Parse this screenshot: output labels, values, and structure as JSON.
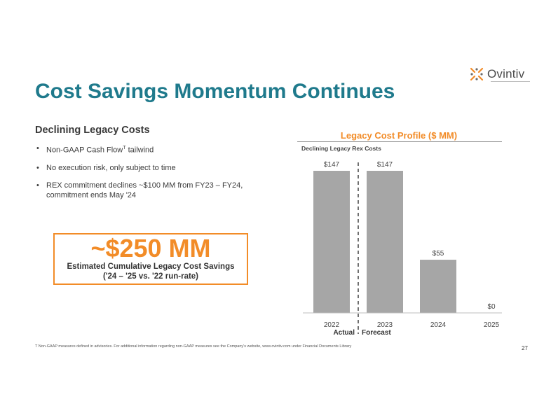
{
  "brand": {
    "name": "Ovintiv",
    "accent": "#f28c28",
    "title_color": "#1f7a8c"
  },
  "title": "Cost Savings Momentum Continues",
  "left_panel": {
    "heading": "Declining Legacy Costs",
    "bullets": [
      {
        "text": "Non-GAAP Cash Flow",
        "sup": "T",
        "tail": " tailwind"
      },
      {
        "text": "No execution risk, only subject to time"
      },
      {
        "text": "REX commitment declines ~$100 MM from FY23 – FY24, commitment ends May '24"
      }
    ],
    "callout": {
      "amount": "~$250 MM",
      "line1": "Estimated Cumulative Legacy Cost Savings",
      "line2": "('24 – '25 vs. '22 run-rate)"
    }
  },
  "chart_data": {
    "type": "bar",
    "title": "Legacy Cost Profile ($ MM)",
    "subtitle": "Declining Legacy Rex Costs",
    "categories": [
      "2022",
      "2023",
      "2024",
      "2025"
    ],
    "values": [
      147,
      147,
      55,
      0
    ],
    "data_labels": [
      "$147",
      "$147",
      "$55",
      "$0"
    ],
    "divider_labels": {
      "left": "Actual",
      "right": "Forecast"
    },
    "bar_color": "#a6a6a6",
    "ylim": [
      0,
      147
    ],
    "grid": false,
    "legend": "none"
  },
  "footer": {
    "footnote": "T Non-GAAP measures defined in advisories.  For additional information regarding non-GAAP measures see the Company's website, www.ovintiv.com under Financial Documents Library",
    "page_number": "27"
  }
}
